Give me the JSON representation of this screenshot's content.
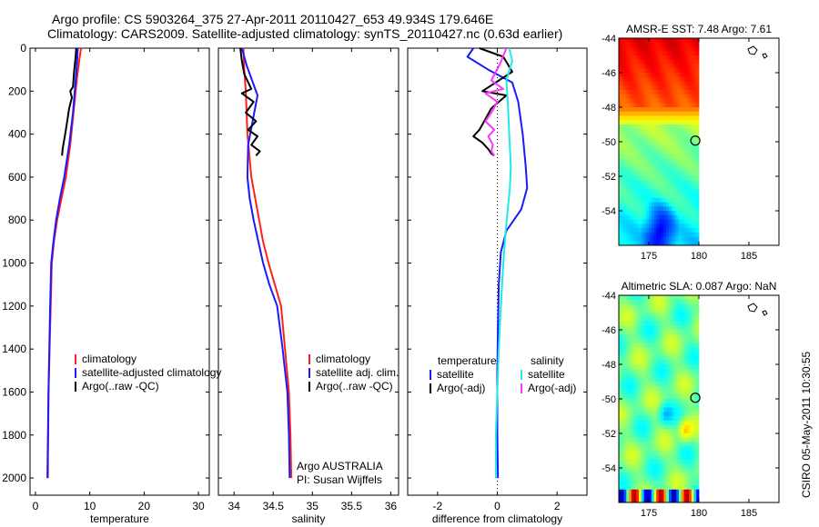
{
  "header": {
    "line1": "Argo profile: CS 5903264_375 27-Apr-2011 20110427_653 49.934S 179.646E",
    "line2": "Climatology: CARS2009. Satellite-adjusted climatology: synTS_20110427.nc (0.63d earlier)"
  },
  "side_text": "CSIRO 05-May-2011 10:30:55",
  "colors": {
    "red": "#ff2020",
    "blue": "#1a1aff",
    "black": "#000000",
    "cyan": "#22e8e8",
    "magenta": "#ff33ff"
  },
  "chart_data": [
    {
      "type": "line",
      "panel": "temperature",
      "xlabel": "temperature",
      "xlim": [
        -1,
        32
      ],
      "ylim": [
        0,
        2080
      ],
      "yreversed": true,
      "xticks": [
        0,
        10,
        20,
        30
      ],
      "yticks": [
        0,
        200,
        400,
        600,
        800,
        1000,
        1200,
        1400,
        1600,
        1800,
        2000
      ],
      "legend": [
        "climatology",
        "satellite-adjusted climatology",
        "Argo(..raw -QC)"
      ],
      "series": [
        {
          "name": "climatology",
          "color": "red",
          "x": [
            8.4,
            8.1,
            7.6,
            7.0,
            6.4,
            5.6,
            4.8,
            4.0,
            3.4,
            3.0,
            2.8,
            2.6,
            2.4,
            2.35,
            2.3,
            2.3
          ],
          "y": [
            0,
            50,
            150,
            300,
            450,
            600,
            700,
            800,
            900,
            1000,
            1200,
            1400,
            1600,
            1800,
            1900,
            2000
          ]
        },
        {
          "name": "satellite-adjusted climatology",
          "color": "blue",
          "x": [
            7.8,
            7.7,
            7.4,
            6.9,
            6.2,
            5.3,
            4.5,
            3.8,
            3.3,
            2.9,
            2.7,
            2.55,
            2.4,
            2.3,
            2.25,
            2.2
          ],
          "y": [
            0,
            50,
            150,
            300,
            450,
            600,
            700,
            800,
            900,
            1000,
            1200,
            1400,
            1600,
            1800,
            1900,
            2000
          ]
        },
        {
          "name": "Argo(..raw -QC)",
          "color": "black",
          "x": [
            7.5,
            7.4,
            7.1,
            6.9,
            6.4,
            6.7,
            6.2,
            5.9,
            5.6,
            5.4,
            5.2,
            5.0,
            4.9
          ],
          "y": [
            0,
            40,
            110,
            180,
            200,
            230,
            280,
            330,
            380,
            410,
            440,
            470,
            500
          ]
        }
      ]
    },
    {
      "type": "line",
      "panel": "salinity",
      "xlabel": "salinity",
      "xlim": [
        33.8,
        36.1
      ],
      "ylim": [
        0,
        2080
      ],
      "yreversed": true,
      "xticks": [
        34,
        34.5,
        35,
        35.5,
        36
      ],
      "yticks": [
        0,
        200,
        400,
        600,
        800,
        1000,
        1200,
        1400,
        1600,
        1800,
        2000
      ],
      "legend": [
        "climatology",
        "satellite adj. clim.",
        "Argo(..raw -QC)"
      ],
      "annotations": [
        "Argo AUSTRALIA",
        "PI: Susan Wijffels"
      ],
      "series": [
        {
          "name": "climatology",
          "color": "red",
          "x": [
            34.12,
            34.13,
            34.15,
            34.17,
            34.22,
            34.27,
            34.32,
            34.37,
            34.44,
            34.52,
            34.6,
            34.65,
            34.7,
            34.72,
            34.73
          ],
          "y": [
            0,
            100,
            200,
            400,
            600,
            700,
            800,
            900,
            1000,
            1100,
            1200,
            1400,
            1600,
            1800,
            2000
          ]
        },
        {
          "name": "satellite adj. clim.",
          "color": "blue",
          "x": [
            34.1,
            34.16,
            34.3,
            34.18,
            34.17,
            34.2,
            34.25,
            34.31,
            34.37,
            34.45,
            34.55,
            34.62,
            34.68,
            34.7,
            34.71
          ],
          "y": [
            0,
            80,
            220,
            450,
            600,
            700,
            800,
            900,
            1000,
            1100,
            1200,
            1400,
            1600,
            1800,
            2000
          ]
        },
        {
          "name": "Argo(..raw -QC)",
          "color": "black",
          "x": [
            34.08,
            34.1,
            34.13,
            34.22,
            34.1,
            34.25,
            34.15,
            34.28,
            34.18,
            34.3,
            34.22,
            34.33,
            34.28
          ],
          "y": [
            0,
            60,
            120,
            190,
            210,
            250,
            300,
            340,
            380,
            410,
            450,
            480,
            500
          ]
        }
      ]
    },
    {
      "type": "line",
      "panel": "difference",
      "xlabel": "difference from climatology",
      "xlim": [
        -3,
        3
      ],
      "ylim": [
        0,
        2080
      ],
      "yreversed": true,
      "xticks": [
        -2,
        0,
        2
      ],
      "yticks": [
        0,
        200,
        400,
        600,
        800,
        1000,
        1200,
        1400,
        1600,
        1800,
        2000
      ],
      "legend_groups": [
        {
          "title": "temperature",
          "items": [
            "satellite",
            "Argo(-adj)"
          ]
        },
        {
          "title": "salinity",
          "items": [
            "satellite",
            "Argo(-adj)"
          ]
        }
      ],
      "series": [
        {
          "name": "temperature satellite",
          "color": "blue",
          "x": [
            -0.8,
            -1.0,
            -0.3,
            0.5,
            0.7,
            0.85,
            0.95,
            1.0,
            0.8,
            0.3,
            0.12,
            0.05,
            0.02,
            0.0,
            0.0,
            0.02
          ],
          "y": [
            0,
            40,
            100,
            160,
            250,
            400,
            550,
            650,
            750,
            850,
            950,
            1100,
            1300,
            1500,
            1800,
            2000
          ]
        },
        {
          "name": "temperature Argo(-adj)",
          "color": "black",
          "x": [
            -0.6,
            0.2,
            0.5,
            -0.5,
            0.3,
            -0.2,
            -0.4,
            -0.6,
            -0.8,
            -0.5,
            -0.3,
            -0.2,
            -0.1
          ],
          "y": [
            0,
            40,
            110,
            200,
            220,
            280,
            330,
            380,
            410,
            440,
            470,
            490,
            500
          ]
        },
        {
          "name": "salinity satellite",
          "color": "cyan",
          "x": [
            0.4,
            0.5,
            0.3,
            0.35,
            0.4,
            0.45,
            0.42,
            0.35,
            0.28,
            0.2,
            0.12,
            0.05,
            0.0,
            -0.05,
            -0.05
          ],
          "y": [
            0,
            60,
            150,
            250,
            400,
            550,
            650,
            750,
            850,
            1000,
            1200,
            1400,
            1600,
            1800,
            2000
          ]
        },
        {
          "name": "salinity Argo(-adj)",
          "color": "magenta",
          "x": [
            0.3,
            0.1,
            -0.2,
            0.2,
            -0.4,
            0.0,
            -0.2,
            -0.4,
            -0.1,
            -0.3,
            -0.15,
            -0.2,
            -0.1
          ],
          "y": [
            0,
            70,
            150,
            190,
            210,
            250,
            300,
            340,
            380,
            410,
            450,
            480,
            500
          ]
        }
      ]
    },
    {
      "type": "heatmap",
      "panel": "AMSR-E SST",
      "title": "AMSR-E SST: 7.48 Argo: 7.61",
      "xlim": [
        172,
        188
      ],
      "ylim": [
        -56,
        -44
      ],
      "xticks": [
        175,
        180,
        185
      ],
      "yticks": [
        -44,
        -46,
        -48,
        -50,
        -52,
        -54
      ],
      "data_xlim": [
        172,
        180
      ],
      "marker": {
        "lon": 179.646,
        "lat": -49.934
      }
    },
    {
      "type": "heatmap",
      "panel": "Altimetric SLA",
      "title": "Altimetric SLA: 0.087 Argo: NaN",
      "xlim": [
        172,
        188
      ],
      "ylim": [
        -56,
        -44
      ],
      "xticks": [
        175,
        180,
        185
      ],
      "yticks": [
        -44,
        -46,
        -48,
        -50,
        -52,
        -54
      ],
      "data_xlim": [
        172,
        180
      ],
      "marker": {
        "lon": 179.646,
        "lat": -49.934
      }
    }
  ]
}
